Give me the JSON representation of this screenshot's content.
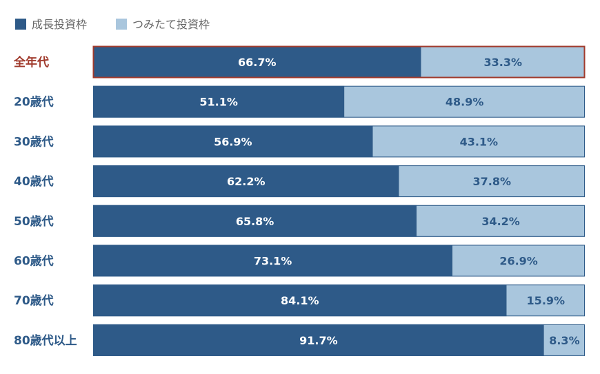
{
  "chart_data": {
    "type": "bar",
    "orientation": "horizontal",
    "stacked": "percent",
    "title": "",
    "xlabel": "",
    "ylabel": "",
    "xlim": [
      0,
      100
    ],
    "grid": false,
    "legend_position": "top-left",
    "highlighted_category": "全年代",
    "categories": [
      "全年代",
      "20歳代",
      "30歳代",
      "40歳代",
      "50歳代",
      "60歳代",
      "70歳代",
      "80歳代以上"
    ],
    "series": [
      {
        "name": "成長投資枠",
        "color": "#2e5a88",
        "values": [
          66.7,
          51.1,
          56.9,
          62.2,
          65.8,
          73.1,
          84.1,
          91.7
        ],
        "labels": [
          "66.7%",
          "51.1%",
          "56.9%",
          "62.2%",
          "65.8%",
          "73.1%",
          "84.1%",
          "91.7%"
        ]
      },
      {
        "name": "つみたて投資枠",
        "color": "#a9c6dd",
        "values": [
          33.3,
          48.9,
          43.1,
          37.8,
          34.2,
          26.9,
          15.9,
          8.3
        ],
        "labels": [
          "33.3%",
          "48.9%",
          "43.1%",
          "37.8%",
          "34.2%",
          "26.9%",
          "15.9%",
          "8.3%"
        ]
      }
    ]
  },
  "colors": {
    "highlight_text": "#a03a2c",
    "category_text": "#2e5a88",
    "dark_value_text": "#ffffff",
    "light_value_text": "#2e5a88",
    "bar_border": "#2e5a88"
  }
}
